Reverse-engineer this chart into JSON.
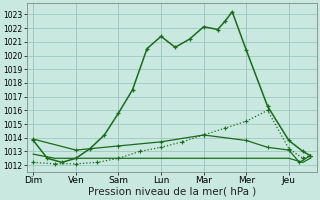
{
  "background_color": "#c8e8e0",
  "grid_color": "#a0c8c0",
  "line_color": "#1a6b1a",
  "xlabel": "Pression niveau de la mer( hPa )",
  "xlabel_fontsize": 7.5,
  "ylim": [
    1011.5,
    1023.8
  ],
  "yticks": [
    1012,
    1013,
    1014,
    1015,
    1016,
    1017,
    1018,
    1019,
    1020,
    1021,
    1022,
    1023
  ],
  "x_labels": [
    "Dim",
    "Ven",
    "Sam",
    "Lun",
    "Mar",
    "Mer",
    "Jeu"
  ],
  "series1_x": [
    0,
    0.33,
    0.67,
    1.0,
    1.33,
    1.67,
    2.0,
    2.33,
    2.67,
    3.0,
    3.33,
    3.67,
    4.0,
    4.33,
    4.5,
    4.67,
    5.0,
    5.5,
    6.0,
    6.33,
    6.5
  ],
  "series1_y": [
    1013.8,
    1012.5,
    1012.2,
    1012.5,
    1013.2,
    1014.2,
    1015.8,
    1017.5,
    1020.5,
    1021.4,
    1020.6,
    1021.2,
    1022.1,
    1021.9,
    1022.5,
    1023.2,
    1020.4,
    1016.3,
    1013.8,
    1013.0,
    1012.7
  ],
  "series2_x": [
    0,
    0.5,
    1.0,
    1.5,
    2.0,
    2.5,
    3.0,
    3.5,
    4.0,
    4.5,
    5.0,
    5.5,
    6.0,
    6.33,
    6.5
  ],
  "series2_y": [
    1012.2,
    1012.1,
    1012.1,
    1012.2,
    1012.5,
    1013.0,
    1013.3,
    1013.7,
    1014.2,
    1014.7,
    1015.2,
    1016.0,
    1013.2,
    1012.5,
    1012.7
  ],
  "series3_x": [
    0,
    0.5,
    1.0,
    1.5,
    2.0,
    2.5,
    3.0,
    3.5,
    4.0,
    4.5,
    5.0,
    5.5,
    6.0,
    6.33,
    6.5
  ],
  "series3_y": [
    1012.8,
    1012.5,
    1012.5,
    1012.5,
    1012.5,
    1012.5,
    1012.5,
    1012.5,
    1012.5,
    1012.5,
    1012.5,
    1012.5,
    1012.5,
    1012.2,
    1012.5
  ],
  "series4_x": [
    0,
    1.0,
    2.0,
    3.0,
    4.0,
    5.0,
    5.5,
    6.0,
    6.25,
    6.5
  ],
  "series4_y": [
    1013.9,
    1013.1,
    1013.4,
    1013.7,
    1014.2,
    1013.8,
    1013.3,
    1013.1,
    1012.2,
    1012.7
  ]
}
